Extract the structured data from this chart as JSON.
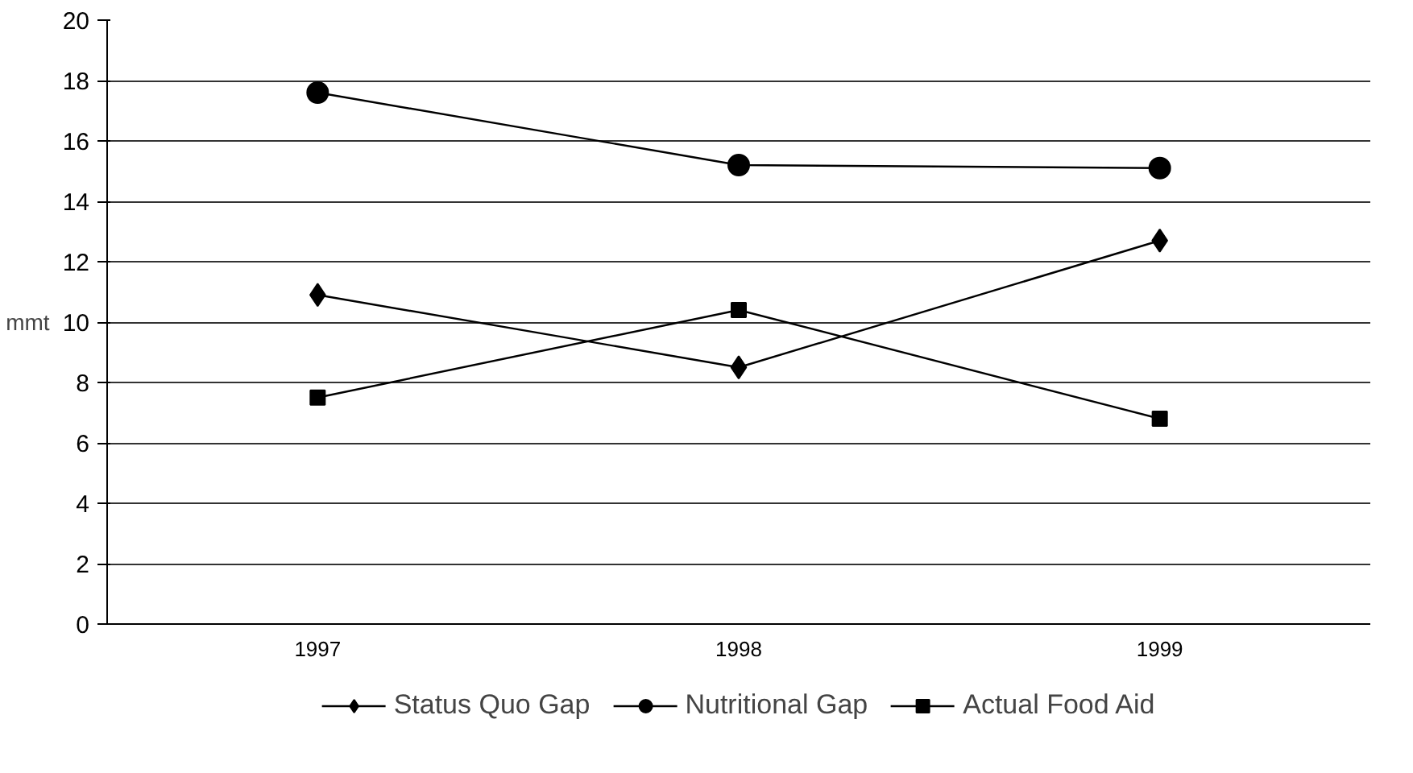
{
  "chart_data": {
    "type": "line",
    "ylabel": "mmt",
    "categories": [
      "1997",
      "1998",
      "1999"
    ],
    "series": [
      {
        "name": "Status Quo Gap",
        "color": "#000000",
        "marker": "diamond",
        "values": [
          10.9,
          8.5,
          12.7
        ]
      },
      {
        "name": "Nutritional Gap",
        "color": "#000000",
        "marker": "circle",
        "values": [
          17.6,
          15.2,
          15.1
        ]
      },
      {
        "name": "Actual Food Aid",
        "color": "#000000",
        "marker": "square",
        "values": [
          7.5,
          10.4,
          6.8
        ]
      }
    ],
    "ylim": [
      0,
      20
    ],
    "yticks": [
      0,
      2,
      4,
      6,
      8,
      10,
      12,
      14,
      16,
      18,
      20
    ],
    "grid": "y",
    "legend": "bottom",
    "line_style": "solid"
  }
}
